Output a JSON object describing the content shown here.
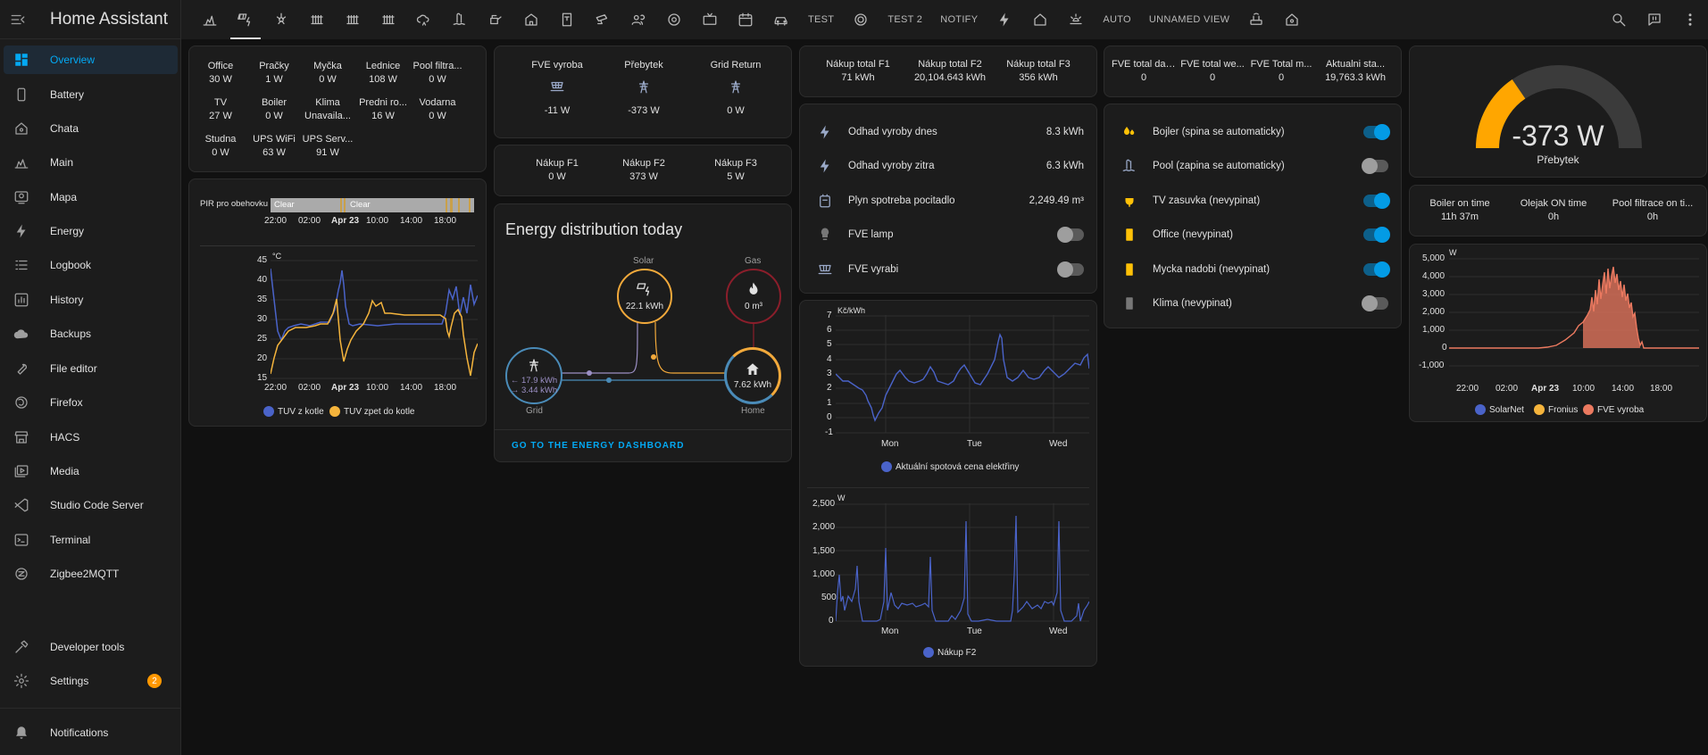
{
  "app": {
    "title": "Home Assistant"
  },
  "sidebar": {
    "items": [
      {
        "label": "Overview",
        "icon": "dashboard-icon"
      },
      {
        "label": "Battery",
        "icon": "phone-icon"
      },
      {
        "label": "Chata",
        "icon": "home-outline-icon"
      },
      {
        "label": "Main",
        "icon": "solar-icon"
      },
      {
        "label": "Mapa",
        "icon": "account-box-icon"
      },
      {
        "label": "Energy",
        "icon": "lightning-icon"
      },
      {
        "label": "Logbook",
        "icon": "list-icon"
      },
      {
        "label": "History",
        "icon": "chart-box-icon"
      },
      {
        "label": "Backups",
        "icon": "cloud-icon"
      },
      {
        "label": "File editor",
        "icon": "wrench-icon"
      },
      {
        "label": "Firefox",
        "icon": "firefox-icon"
      },
      {
        "label": "HACS",
        "icon": "store-icon"
      },
      {
        "label": "Media",
        "icon": "media-icon"
      },
      {
        "label": "Studio Code Server",
        "icon": "vscode-icon"
      },
      {
        "label": "Terminal",
        "icon": "terminal-icon"
      },
      {
        "label": "Zigbee2MQTT",
        "icon": "zigbee-icon"
      }
    ],
    "developer_tools": "Developer tools",
    "settings": "Settings",
    "settings_badge": "2",
    "notifications": "Notifications"
  },
  "topbar": {
    "text_tabs": [
      "TEST",
      "TEST 2",
      "NOTIFY",
      "AUTO",
      "UNNAMED VIEW"
    ]
  },
  "power": {
    "items": [
      {
        "name": "Office",
        "value": "30 W"
      },
      {
        "name": "Pračky",
        "value": "1 W"
      },
      {
        "name": "Myčka",
        "value": "0 W"
      },
      {
        "name": "Lednice",
        "value": "108 W"
      },
      {
        "name": "Pool filtra...",
        "value": "0 W"
      },
      {
        "name": "TV",
        "value": "27 W"
      },
      {
        "name": "Boiler",
        "value": "0 W"
      },
      {
        "name": "Klima",
        "value": "Unavaila..."
      },
      {
        "name": "Predni ro...",
        "value": "16 W"
      },
      {
        "name": "Vodarna",
        "value": "0 W"
      },
      {
        "name": "Studna",
        "value": "0 W"
      },
      {
        "name": "UPS WiFi",
        "value": "63 W"
      },
      {
        "name": "UPS Serv...",
        "value": "91 W"
      }
    ]
  },
  "timeline": {
    "label": "PIR pro obehovku",
    "state1": "Clear",
    "state2": "Clear",
    "ticks": [
      "22:00",
      "02:00",
      "Apr 23",
      "10:00",
      "14:00",
      "18:00"
    ]
  },
  "temp_chart": {
    "unit": "°C",
    "y_ticks": [
      "45",
      "40",
      "35",
      "30",
      "25",
      "20",
      "15"
    ],
    "x_ticks": [
      "22:00",
      "02:00",
      "Apr 23",
      "10:00",
      "14:00",
      "18:00"
    ],
    "legend": [
      "TUV z kotle",
      "TUV zpet do kotle"
    ]
  },
  "fve": {
    "items": [
      {
        "name": "FVE vyroba",
        "value": "-11 W"
      },
      {
        "name": "Přebytek",
        "value": "-373 W"
      },
      {
        "name": "Grid Return",
        "value": "0 W"
      }
    ]
  },
  "nakup": {
    "items": [
      {
        "name": "Nákup F1",
        "value": "0 W"
      },
      {
        "name": "Nákup F2",
        "value": "373 W"
      },
      {
        "name": "Nákup F3",
        "value": "5 W"
      }
    ]
  },
  "energy": {
    "title": "Energy distribution today",
    "solar_label": "Solar",
    "solar_value": "22.1 kWh",
    "gas_label": "Gas",
    "gas_value": "0 m³",
    "grid_label": "Grid",
    "grid_in": "← 17.9 kWh",
    "grid_out": "→ 3.44 kWh",
    "home_label": "Home",
    "home_value": "7.62 kWh",
    "link": "GO TO THE ENERGY DASHBOARD"
  },
  "totals": {
    "items": [
      {
        "name": "Nákup total F1",
        "value": "71 kWh"
      },
      {
        "name": "Nákup total F2",
        "value": "20,104.643 kWh"
      },
      {
        "name": "Nákup total F3",
        "value": "356 kWh"
      }
    ]
  },
  "estimates": {
    "rows": [
      {
        "name": "Odhad vyroby dnes",
        "value": "8.3 kWh",
        "icon": "lightning-icon"
      },
      {
        "name": "Odhad vyroby zitra",
        "value": "6.3 kWh",
        "icon": "lightning-icon"
      },
      {
        "name": "Plyn spotreba pocitadlo",
        "value": "2,249.49 m³",
        "icon": "meter-icon"
      },
      {
        "name": "FVE lamp",
        "icon": "lightbulb-icon",
        "toggle": false
      },
      {
        "name": "FVE vyrabi",
        "icon": "solar-panel-icon",
        "toggle": false
      }
    ]
  },
  "price_chart": {
    "unit": "Kč/kWh",
    "y_ticks": [
      "7",
      "6",
      "5",
      "4",
      "3",
      "2",
      "1",
      "0",
      "-1"
    ],
    "x_ticks": [
      "Mon",
      "Tue",
      "Wed"
    ],
    "legend": "Aktuální spotová cena elektřiny"
  },
  "nakup_chart": {
    "unit": "W",
    "y_ticks": [
      "2,500",
      "2,000",
      "1,500",
      "1,000",
      "500",
      "0"
    ],
    "x_ticks": [
      "Mon",
      "Tue",
      "Wed"
    ],
    "legend": "Nákup F2"
  },
  "fve_totals": {
    "items": [
      {
        "name": "FVE total dai...",
        "value": "0"
      },
      {
        "name": "FVE total we...",
        "value": "0"
      },
      {
        "name": "FVE Total m...",
        "value": "0"
      },
      {
        "name": "Aktualni sta...",
        "value": "19,763.3 kWh"
      }
    ]
  },
  "switches": {
    "rows": [
      {
        "name": "Bojler (spina se automaticky)",
        "icon": "water-boiler-icon",
        "on": true,
        "color": "#ffc107"
      },
      {
        "name": "Pool (zapina se automaticky)",
        "icon": "pool-icon",
        "on": false,
        "color": "#9aa9c8"
      },
      {
        "name": "TV zasuvka (nevypinat)",
        "icon": "power-plug-icon",
        "on": true,
        "color": "#ffc107"
      },
      {
        "name": "Office (nevypinat)",
        "icon": "socket-icon",
        "on": true,
        "color": "#ffc107"
      },
      {
        "name": "Mycka nadobi (nevypinat)",
        "icon": "socket-icon",
        "on": true,
        "color": "#ffc107"
      },
      {
        "name": "Klima (nevypinat)",
        "icon": "socket-icon",
        "on": false,
        "color": "#777777"
      }
    ]
  },
  "gauge": {
    "value": "-373 W",
    "label": "Přebytek",
    "fraction": 0.31,
    "color": "#ffa600"
  },
  "times": {
    "items": [
      {
        "name": "Boiler on time",
        "value": "11h 37m"
      },
      {
        "name": "Olejak ON time",
        "value": "0h"
      },
      {
        "name": "Pool filtrace on ti...",
        "value": "0h"
      }
    ]
  },
  "solar_chart": {
    "unit": "W",
    "y_ticks": [
      "5,000",
      "4,000",
      "3,000",
      "2,000",
      "1,000",
      "0",
      "-1,000"
    ],
    "x_ticks": [
      "22:00",
      "02:00",
      "Apr 23",
      "10:00",
      "14:00",
      "18:00"
    ],
    "legend": [
      "SolarNet",
      "Fronius",
      "FVE vyroba"
    ]
  },
  "colors": {
    "accent": "#03a9f4",
    "blue_series": "#4a63c9",
    "orange_series": "#f5b43c",
    "red_series": "#ec7a60",
    "card": "#1c1c1c"
  }
}
